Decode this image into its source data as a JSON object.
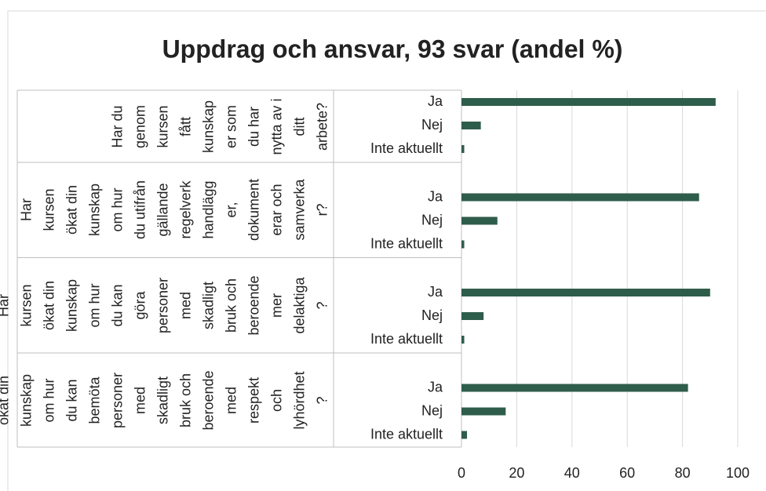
{
  "chart_data": {
    "type": "bar",
    "orientation": "horizontal",
    "title": "Uppdrag och ansvar, 93 svar (andel %)",
    "categories": [
      "Ja",
      "Nej",
      "Inte aktuellt"
    ],
    "groups": [
      {
        "name": "Har du genom kursen fått kunskaper som du har nytta av i ditt arbete?",
        "values": [
          92,
          7,
          1
        ]
      },
      {
        "name": "Har kursen ökat din kunskap om hur du utifrån gällande regelverk handlägger, dokumenterar och samverkar?",
        "values": [
          86,
          13,
          1
        ]
      },
      {
        "name": "Har kursen ökat din kunskap om hur du kan göra personer med skadligt bruk och beroende mer delaktiga?",
        "values": [
          90,
          8,
          1
        ]
      },
      {
        "name": "Har kursen ökat din kunskap om hur du kan bemöta personer med skadligt bruk och beroende med respekt och lyhördhet?",
        "values": [
          82,
          16,
          2
        ]
      }
    ],
    "color": "#2f5d4b",
    "xlim": [
      0,
      100
    ],
    "xticks": [
      0,
      20,
      40,
      60,
      80,
      100
    ],
    "grid": true
  }
}
